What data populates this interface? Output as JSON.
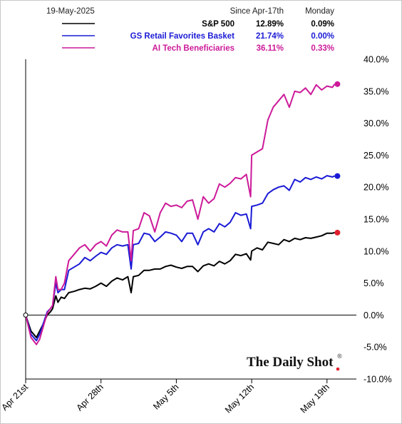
{
  "header": {
    "date": "19-May-2025",
    "col1": "Since Apr-17th",
    "col2": "Monday"
  },
  "watermark": {
    "text": "The Daily Shot",
    "mark": "®"
  },
  "chart_data": {
    "type": "line",
    "y_axis": {
      "side": "right",
      "min": -10,
      "max": 40,
      "step": 5,
      "format": "percent_1dp"
    },
    "x_ticks": [
      {
        "label": "Apr 21st",
        "day": 0
      },
      {
        "label": "Apr 28th",
        "day": 7
      },
      {
        "label": "May 5th",
        "day": 14
      },
      {
        "label": "May 12th",
        "day": 21
      },
      {
        "label": "May 19th",
        "day": 28
      }
    ],
    "x_range": [
      0,
      30
    ],
    "zero_line": true,
    "legend_placement": "top",
    "series": [
      {
        "name": "S&P 500",
        "color": "#000000",
        "since": "12.89%",
        "monday": "0.09%",
        "end_marker_color": "#e0202e",
        "x": [
          0,
          0.5,
          1,
          1.3,
          1.6,
          2,
          2.3,
          2.5,
          2.8,
          3,
          3.3,
          3.6,
          4,
          4.5,
          5,
          5.5,
          6,
          6.5,
          7,
          7.5,
          8,
          8.5,
          9,
          9.5,
          9.8,
          10,
          10.5,
          11,
          11.5,
          12,
          12.5,
          13,
          13.5,
          14,
          14.5,
          15,
          15.5,
          16,
          16.5,
          17,
          17.5,
          18,
          18.5,
          19,
          19.5,
          20,
          20.5,
          20.9,
          21,
          21.5,
          22,
          22.5,
          23,
          23.5,
          24,
          24.5,
          25,
          25.5,
          26,
          26.5,
          27,
          27.5,
          28,
          28.5,
          28.7
        ],
        "y": [
          0,
          -2.5,
          -3.5,
          -2.5,
          -1.5,
          0,
          0.5,
          1,
          3,
          2,
          2.8,
          2.6,
          3.5,
          3.7,
          4,
          4.2,
          4.1,
          4.5,
          5,
          4.5,
          5.3,
          5.8,
          5.5,
          6,
          3.5,
          6,
          6.2,
          7,
          7,
          7.2,
          7.2,
          7.6,
          7.8,
          7.5,
          7.3,
          7.6,
          7.6,
          6.8,
          7.7,
          8,
          7.7,
          8.4,
          8,
          8.5,
          9.5,
          9.3,
          9.6,
          8.6,
          10,
          10.5,
          10.2,
          11.4,
          11.2,
          11,
          11.8,
          11.5,
          12,
          11.8,
          12.1,
          12,
          12.2,
          12.4,
          12.8,
          12.8,
          12.89
        ]
      },
      {
        "name": "GS Retail Favorites Basket",
        "color": "#1a1ad6",
        "since": "21.74%",
        "monday": "0.00%",
        "end_marker_color": "#1a1ad6",
        "x": [
          0,
          0.5,
          1,
          1.3,
          1.6,
          2,
          2.3,
          2.5,
          2.8,
          3,
          3.3,
          3.6,
          4,
          4.5,
          5,
          5.5,
          6,
          6.5,
          7,
          7.5,
          8,
          8.5,
          9,
          9.5,
          9.8,
          10,
          10.5,
          11,
          11.5,
          12,
          12.5,
          13,
          13.5,
          14,
          14.5,
          15,
          15.5,
          16,
          16.5,
          17,
          17.5,
          18,
          18.5,
          19,
          19.5,
          20,
          20.5,
          20.9,
          21,
          21.5,
          22,
          22.5,
          23,
          23.5,
          24,
          24.5,
          25,
          25.5,
          26,
          26.5,
          27,
          27.5,
          28,
          28.5,
          28.7
        ],
        "y": [
          0,
          -3,
          -4,
          -3,
          -1.5,
          0.5,
          1,
          1.5,
          5,
          3.5,
          4,
          4,
          7,
          7.5,
          8,
          9,
          8.5,
          9.2,
          9.8,
          9.5,
          10.5,
          11,
          10.8,
          11,
          7.2,
          11,
          11.2,
          12.8,
          12.6,
          11.5,
          12.2,
          13,
          12.8,
          12.5,
          11.5,
          12.8,
          12.8,
          11,
          13,
          13.5,
          13,
          14.3,
          13.8,
          14.5,
          16,
          15.6,
          15.8,
          13.5,
          17,
          17.2,
          17.5,
          19,
          19.6,
          20,
          20.2,
          19.5,
          21.2,
          20.8,
          21.5,
          21.2,
          21.6,
          21.3,
          21.8,
          21.6,
          21.74
        ]
      },
      {
        "name": "AI Tech Beneficiaries",
        "color": "#cc1a99",
        "since": "36.11%",
        "monday": "0.33%",
        "end_marker_color": "#cc1a99",
        "x": [
          0,
          0.5,
          1,
          1.3,
          1.6,
          2,
          2.3,
          2.5,
          2.8,
          3,
          3.3,
          3.6,
          4,
          4.5,
          5,
          5.5,
          6,
          6.5,
          7,
          7.5,
          8,
          8.5,
          9,
          9.5,
          9.8,
          10,
          10.5,
          11,
          11.5,
          12,
          12.5,
          13,
          13.5,
          14,
          14.5,
          15,
          15.5,
          16,
          16.5,
          17,
          17.5,
          18,
          18.5,
          19,
          19.5,
          20,
          20.5,
          20.9,
          21,
          21.5,
          22,
          22.5,
          23,
          23.5,
          24,
          24.5,
          25,
          25.5,
          26,
          26.5,
          27,
          27.5,
          28,
          28.5,
          28.7
        ],
        "y": [
          0,
          -3.5,
          -4.6,
          -3.8,
          -2,
          0.3,
          1,
          1.5,
          6,
          4,
          4,
          5,
          8.5,
          9.5,
          10.5,
          11,
          10,
          11,
          11.5,
          10.8,
          12.5,
          13.3,
          13,
          13,
          8.5,
          13.2,
          13.5,
          16,
          15.5,
          13,
          16,
          17.5,
          17,
          17.2,
          16.8,
          17.8,
          18,
          15,
          18.5,
          17.5,
          18.2,
          20.5,
          20,
          20.6,
          21.5,
          21.3,
          22,
          18.5,
          25,
          25.5,
          26,
          30.5,
          32.5,
          33.5,
          34.5,
          32.5,
          35,
          34.8,
          35.5,
          34.5,
          36,
          35.2,
          35.8,
          35.6,
          36.11
        ]
      }
    ]
  }
}
